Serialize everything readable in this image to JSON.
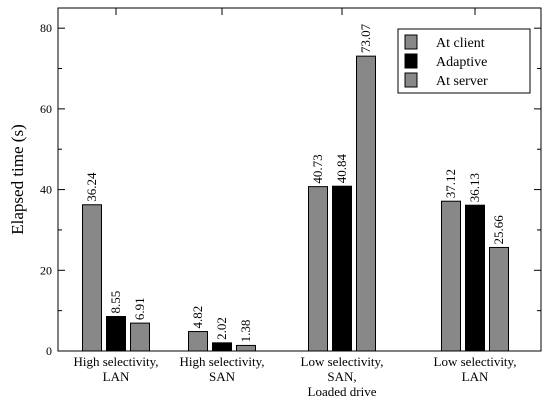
{
  "chart_data": {
    "type": "bar",
    "ylabel": "Elapsed time (s)",
    "ylim": [
      0,
      85
    ],
    "yticks": [
      0,
      20,
      40,
      60,
      80
    ],
    "categories": [
      [
        "High selectivity,",
        "LAN"
      ],
      [
        "High selectivity,",
        "SAN"
      ],
      [
        "Low selectivity,",
        "SAN,",
        "Loaded drive"
      ],
      [
        "Low selectivity,",
        "LAN"
      ]
    ],
    "series": [
      {
        "name": "At client",
        "color": "#888888",
        "values": [
          36.24,
          4.82,
          40.73,
          37.12
        ]
      },
      {
        "name": "Adaptive",
        "color": "#000000",
        "values": [
          8.55,
          2.02,
          40.84,
          36.13
        ]
      },
      {
        "name": "At server",
        "color": "#888888",
        "values": [
          6.91,
          1.38,
          73.07,
          25.66
        ]
      }
    ],
    "data_labels": [
      [
        "36.24",
        "8.55",
        "6.91"
      ],
      [
        "4.82",
        "2.02",
        "1.38"
      ],
      [
        "40.73",
        "40.84",
        "73.07"
      ],
      [
        "37.12",
        "36.13",
        "25.66"
      ]
    ],
    "legend": "top-right",
    "grid": false
  }
}
